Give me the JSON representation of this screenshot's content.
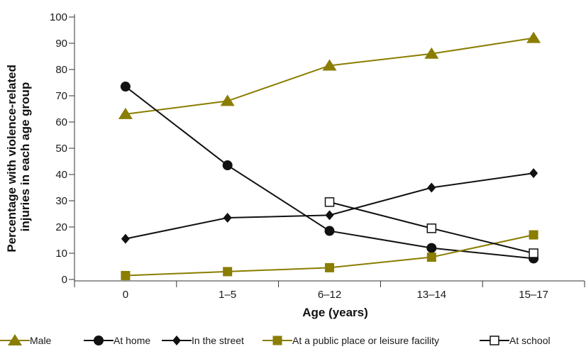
{
  "chart_data": {
    "type": "line",
    "categories": [
      "0",
      "1–5",
      "6–12",
      "13–14",
      "15–17"
    ],
    "xlabel": "Age (years)",
    "ylabel": "Percentage with violence-related injuries in each age group",
    "ylabel_lines": [
      "Percentage with violence-related",
      "injuries in each age group"
    ],
    "ylim": [
      0,
      100
    ],
    "yticks": [
      0,
      10,
      20,
      30,
      40,
      50,
      60,
      70,
      80,
      90,
      100
    ],
    "grid": false,
    "legend_position": "bottom",
    "series": [
      {
        "name": "Male",
        "values": [
          63,
          68,
          81.5,
          86,
          92
        ],
        "color": "#8a7d00",
        "marker": "triangle"
      },
      {
        "name": "At home",
        "values": [
          73.5,
          43.5,
          18.5,
          12,
          8
        ],
        "color": "#111111",
        "marker": "circle"
      },
      {
        "name": "In the street",
        "values": [
          15.5,
          23.5,
          24.5,
          35,
          40.5
        ],
        "color": "#111111",
        "marker": "diamond"
      },
      {
        "name": "At a public place or leisure facility",
        "values": [
          1.5,
          3,
          4.5,
          8.5,
          17
        ],
        "color": "#8a7d00",
        "marker": "square"
      },
      {
        "name": "At school",
        "values": [
          null,
          null,
          29.5,
          19.5,
          10
        ],
        "color": "#111111",
        "marker": "open-square"
      }
    ]
  }
}
